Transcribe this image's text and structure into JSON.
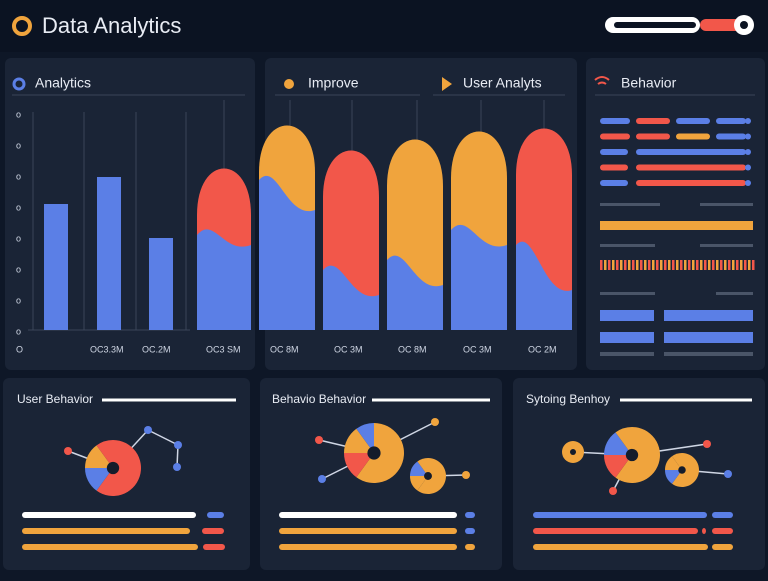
{
  "header": {
    "title": "Data Analytics"
  },
  "panels": {
    "analytics": "Analytics",
    "improve": "Improve",
    "user_analyts": "User Analyts",
    "behavior": "Behavior"
  },
  "y_axis": {
    "ticks": [
      "o",
      "o",
      "o",
      "o",
      "o",
      "o",
      "o",
      "o"
    ],
    "origin": "O"
  },
  "x_axis": {
    "labels": [
      "OC3.3M",
      "OC.2M",
      "OC3 SM",
      "OC 8M",
      "OC 3M",
      "OC 8M",
      "OC 3M",
      "OC 2M"
    ]
  },
  "bottom": {
    "left": "User Behavior",
    "middle": "Behavio Behavior",
    "right": "Sytoing Benhoy"
  }
}
